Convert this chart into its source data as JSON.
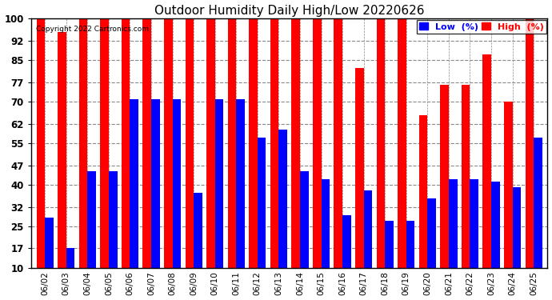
{
  "title": "Outdoor Humidity Daily High/Low 20220626",
  "copyright": "Copyright 2022 Cartronics.com",
  "ylim": [
    10,
    100
  ],
  "yticks": [
    10,
    17,
    25,
    32,
    40,
    47,
    55,
    62,
    70,
    77,
    85,
    92,
    100
  ],
  "dates": [
    "06/02",
    "06/03",
    "06/04",
    "06/05",
    "06/06",
    "06/07",
    "06/08",
    "06/09",
    "06/10",
    "06/11",
    "06/12",
    "06/13",
    "06/14",
    "06/15",
    "06/16",
    "06/17",
    "06/18",
    "06/19",
    "06/20",
    "06/21",
    "06/22",
    "06/23",
    "06/24",
    "06/25"
  ],
  "high": [
    100,
    95,
    100,
    100,
    100,
    100,
    100,
    100,
    100,
    100,
    100,
    100,
    100,
    100,
    100,
    82,
    100,
    100,
    65,
    76,
    76,
    87,
    70,
    100
  ],
  "low": [
    28,
    17,
    45,
    45,
    71,
    71,
    71,
    37,
    71,
    71,
    57,
    60,
    45,
    42,
    29,
    38,
    27,
    27,
    35,
    42,
    42,
    41,
    39,
    57
  ],
  "high_color": "#FF0000",
  "low_color": "#0000FF",
  "bg_color": "#FFFFFF",
  "grid_color": "#888888",
  "title_color": "#000000",
  "copyright_color": "#000000",
  "legend_low_color": "#0000FF",
  "legend_high_color": "#FF0000"
}
